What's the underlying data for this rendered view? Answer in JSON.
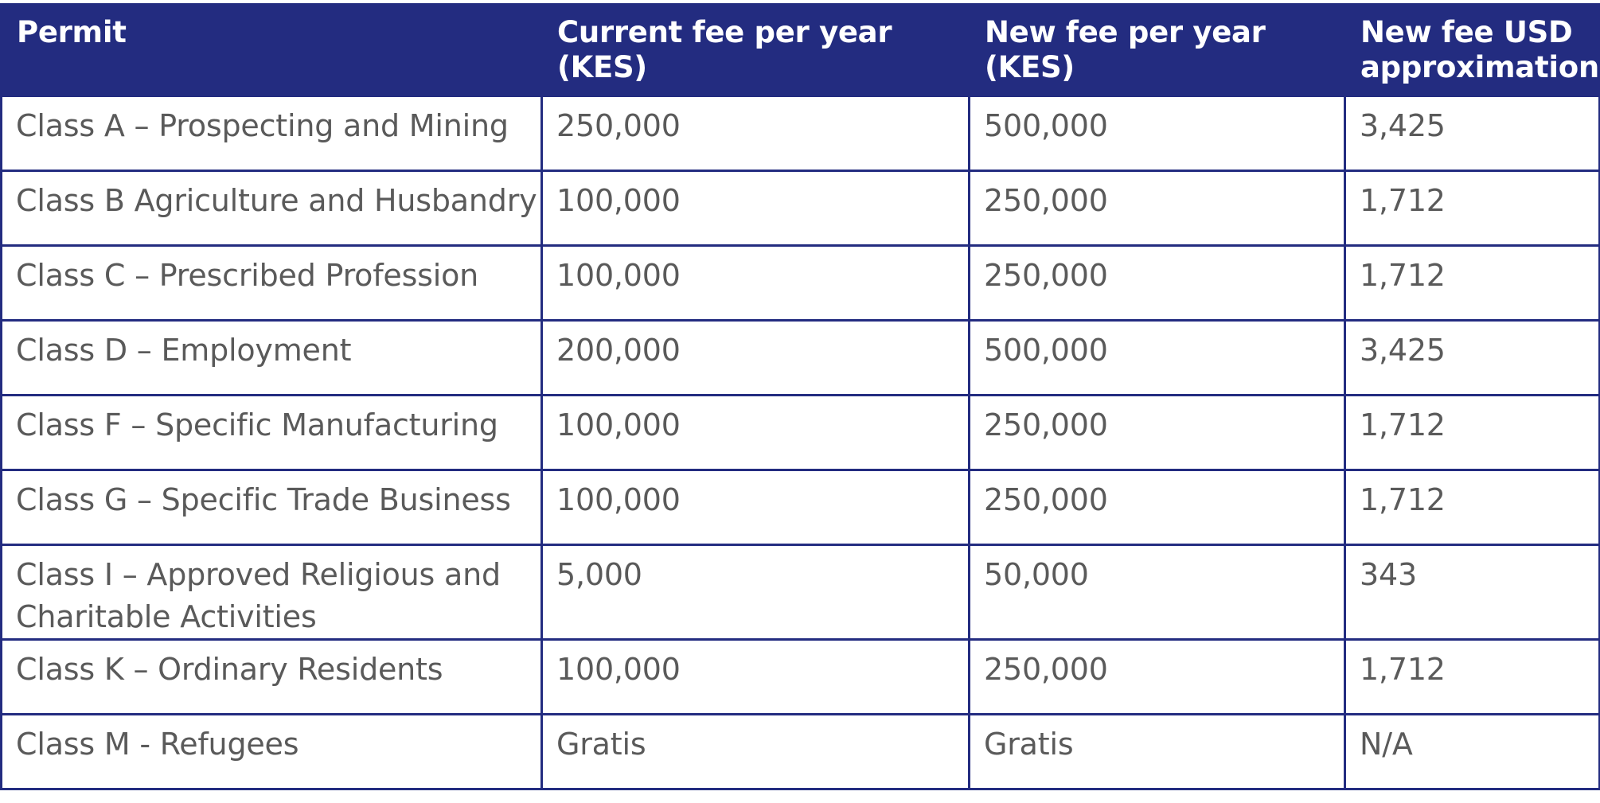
{
  "table": {
    "headers": [
      "Permit",
      "Current fee per year (KES)",
      "New fee per year (KES)",
      "New fee USD approximation"
    ],
    "rows": [
      [
        "Class A – Prospecting and Mining",
        "250,000",
        "500,000",
        "3,425"
      ],
      [
        "Class B Agriculture and Husbandry",
        "100,000",
        "250,000",
        "1,712"
      ],
      [
        "Class C – Prescribed Profession",
        "100,000",
        "250,000",
        "1,712"
      ],
      [
        "Class D – Employment",
        "200,000",
        "500,000",
        "3,425"
      ],
      [
        "Class F – Specific Manufacturing",
        "100,000",
        "250,000",
        "1,712"
      ],
      [
        "Class G – Specific Trade Business",
        "100,000",
        "250,000",
        "1,712"
      ],
      [
        "Class I – Approved Religious and Charitable Activities",
        "5,000",
        "50,000",
        "343"
      ],
      [
        "Class K – Ordinary Residents",
        "100,000",
        "250,000",
        "1,712"
      ],
      [
        "Class M - Refugees",
        "Gratis",
        "Gratis",
        "N/A"
      ]
    ]
  },
  "colors": {
    "header_bg": "#232c80",
    "header_text": "#ffffff",
    "border": "#232c80",
    "cell_text": "#5a5a5a"
  }
}
